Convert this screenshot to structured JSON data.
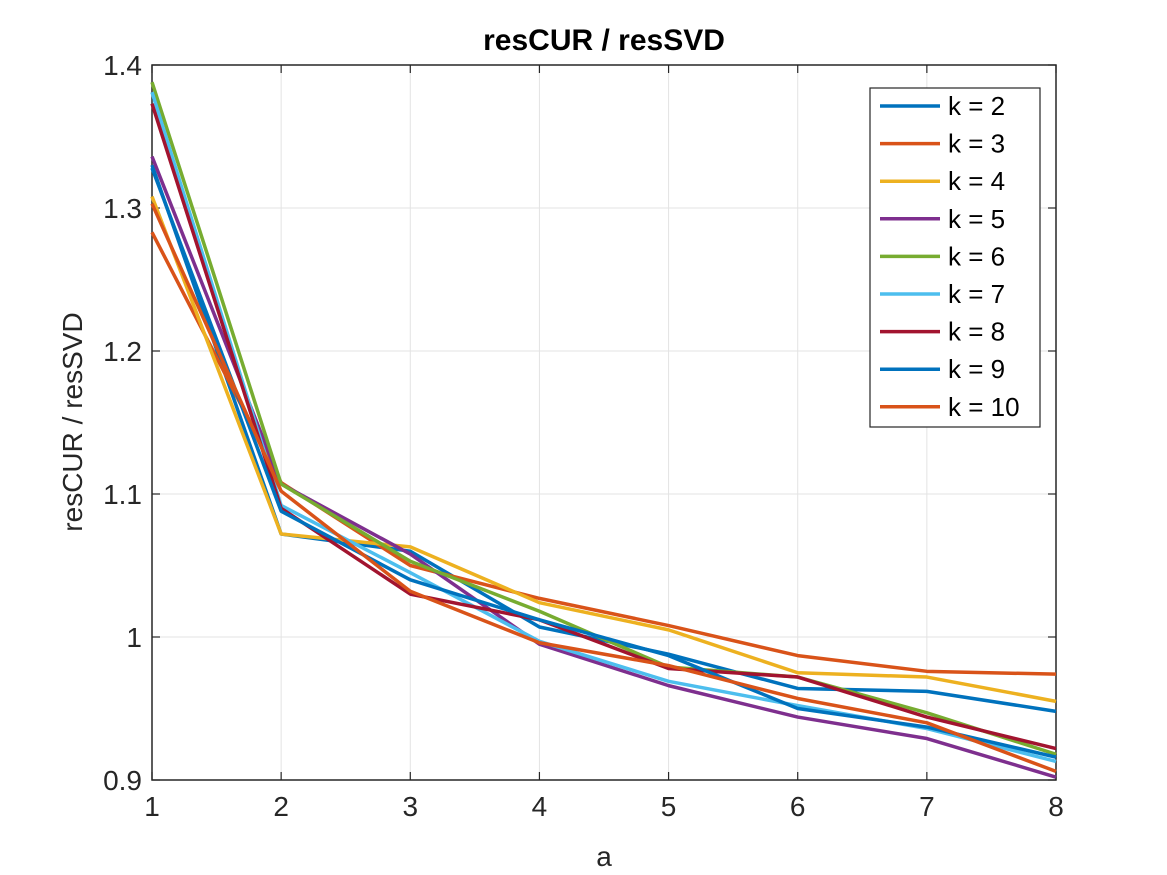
{
  "chart_data": {
    "type": "line",
    "title": "resCUR / resSVD",
    "xlabel": "a",
    "ylabel": "resCUR / resSVD",
    "xlim": [
      1,
      8
    ],
    "ylim": [
      0.9,
      1.4
    ],
    "x": [
      1,
      2,
      3,
      4,
      5,
      6,
      7,
      8
    ],
    "xticks": [
      "1",
      "2",
      "3",
      "4",
      "5",
      "6",
      "7",
      "8"
    ],
    "yticks": [
      "0.9",
      "1",
      "1.1",
      "1.2",
      "1.3",
      "1.4"
    ],
    "grid": true,
    "legend_position": "top-right",
    "series": [
      {
        "name": "k = 2",
        "color": "#0072BD",
        "values": [
          1.33,
          1.072,
          1.06,
          1.007,
          0.988,
          0.964,
          0.962,
          0.948
        ]
      },
      {
        "name": "k = 3",
        "color": "#D95319",
        "values": [
          1.283,
          1.108,
          1.05,
          1.027,
          1.008,
          0.987,
          0.976,
          0.974
        ]
      },
      {
        "name": "k = 4",
        "color": "#EDB120",
        "values": [
          1.308,
          1.072,
          1.063,
          1.024,
          1.005,
          0.975,
          0.972,
          0.955
        ]
      },
      {
        "name": "k = 5",
        "color": "#7E2F8E",
        "values": [
          1.336,
          1.107,
          1.058,
          0.995,
          0.966,
          0.944,
          0.929,
          0.902
        ]
      },
      {
        "name": "k = 6",
        "color": "#77AC30",
        "values": [
          1.388,
          1.107,
          1.053,
          1.018,
          0.979,
          0.972,
          0.947,
          0.918
        ]
      },
      {
        "name": "k = 7",
        "color": "#4DBEEE",
        "values": [
          1.381,
          1.092,
          1.045,
          0.997,
          0.969,
          0.952,
          0.936,
          0.913
        ]
      },
      {
        "name": "k = 8",
        "color": "#A2142F",
        "values": [
          1.373,
          1.09,
          1.03,
          1.012,
          0.978,
          0.972,
          0.944,
          0.922
        ]
      },
      {
        "name": "k = 9",
        "color": "#0072BD",
        "values": [
          1.328,
          1.088,
          1.04,
          1.012,
          0.987,
          0.95,
          0.937,
          0.916
        ]
      },
      {
        "name": "k = 10",
        "color": "#D95319",
        "values": [
          1.303,
          1.102,
          1.032,
          0.996,
          0.98,
          0.957,
          0.94,
          0.906
        ]
      }
    ]
  }
}
